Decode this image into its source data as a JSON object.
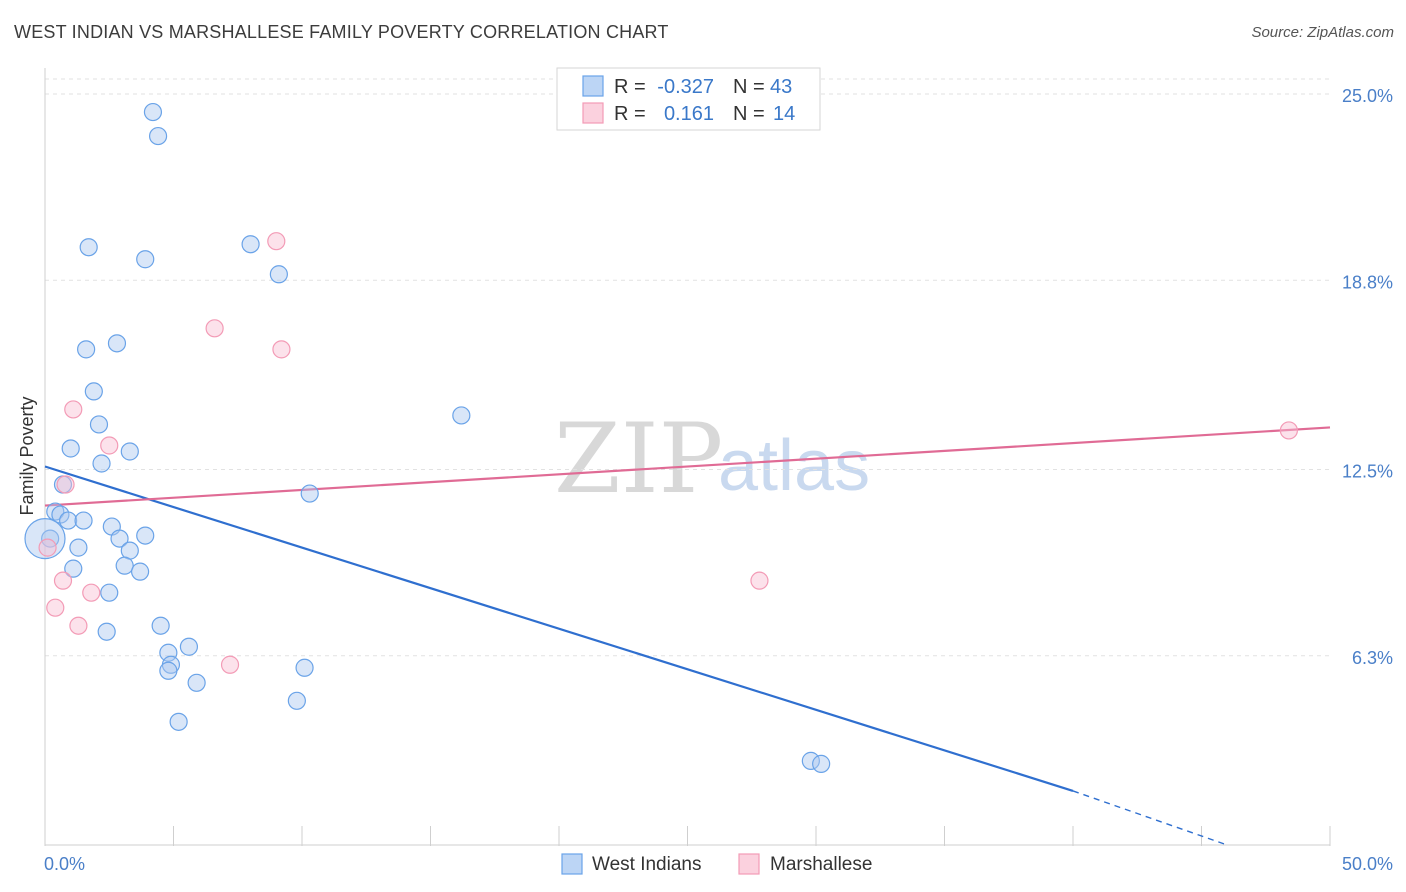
{
  "header": {
    "title": "WEST INDIAN VS MARSHALLESE FAMILY POVERTY CORRELATION CHART",
    "source": "Source: ZipAtlas.com"
  },
  "watermark": {
    "zip": "ZIP",
    "atlas": "atlas"
  },
  "colors": {
    "west_indians": "#6aa3e8",
    "west_indians_line": "#2f6fcf",
    "marshallese": "#f39bb6",
    "marshallese_line": "#e06b95",
    "tick_label": "#4a7fc8"
  },
  "legend": {
    "rows": [
      {
        "r_label": "R =",
        "r_value": "-0.327",
        "n_label": "N =",
        "n_value": "43"
      },
      {
        "r_label": "R =",
        "r_value": "0.161",
        "n_label": "N =",
        "n_value": "14"
      }
    ]
  },
  "chart_data": {
    "type": "scatter",
    "title": "WEST INDIAN VS MARSHALLESE FAMILY POVERTY CORRELATION CHART",
    "xlabel": "",
    "ylabel": "Family Poverty",
    "xlim": [
      0,
      50
    ],
    "ylim": [
      0,
      25.5
    ],
    "x_tick_labels": [
      "0.0%",
      "50.0%"
    ],
    "y_ticks": [
      6.3,
      12.5,
      18.8,
      25.0
    ],
    "y_tick_labels": [
      "6.3%",
      "12.5%",
      "18.8%",
      "25.0%"
    ],
    "grid": true,
    "legend_position": "top-center",
    "series": [
      {
        "name": "West Indians",
        "r": -0.327,
        "n": 43,
        "points": [
          [
            4.2,
            24.4
          ],
          [
            4.4,
            23.6
          ],
          [
            1.7,
            19.9
          ],
          [
            3.9,
            19.5
          ],
          [
            8.0,
            20.0
          ],
          [
            9.1,
            19.0
          ],
          [
            1.6,
            16.5
          ],
          [
            2.8,
            16.7
          ],
          [
            1.9,
            15.1
          ],
          [
            2.1,
            14.0
          ],
          [
            16.2,
            14.3
          ],
          [
            1.0,
            13.2
          ],
          [
            3.3,
            13.1
          ],
          [
            2.2,
            12.7
          ],
          [
            0.7,
            12.0
          ],
          [
            10.3,
            11.7
          ],
          [
            0.4,
            11.1
          ],
          [
            0.6,
            11.0
          ],
          [
            0.9,
            10.8
          ],
          [
            1.5,
            10.8
          ],
          [
            2.6,
            10.6
          ],
          [
            3.9,
            10.3
          ],
          [
            2.9,
            10.2
          ],
          [
            0.2,
            10.2
          ],
          [
            1.3,
            9.9
          ],
          [
            3.3,
            9.8
          ],
          [
            1.1,
            9.2
          ],
          [
            3.1,
            9.3
          ],
          [
            3.7,
            9.1
          ],
          [
            2.5,
            8.4
          ],
          [
            4.5,
            7.3
          ],
          [
            2.4,
            7.1
          ],
          [
            5.6,
            6.6
          ],
          [
            4.8,
            6.4
          ],
          [
            4.9,
            6.0
          ],
          [
            4.8,
            5.8
          ],
          [
            10.1,
            5.9
          ],
          [
            5.9,
            5.4
          ],
          [
            9.8,
            4.8
          ],
          [
            5.2,
            4.1
          ],
          [
            29.8,
            2.8
          ],
          [
            30.2,
            2.7
          ],
          [
            0.0,
            10.2
          ]
        ]
      },
      {
        "name": "Marshallese",
        "r": 0.161,
        "n": 14,
        "points": [
          [
            9.0,
            20.1
          ],
          [
            6.6,
            17.2
          ],
          [
            9.2,
            16.5
          ],
          [
            1.1,
            14.5
          ],
          [
            2.5,
            13.3
          ],
          [
            0.8,
            12.0
          ],
          [
            0.1,
            9.9
          ],
          [
            0.7,
            8.8
          ],
          [
            1.8,
            8.4
          ],
          [
            0.4,
            7.9
          ],
          [
            1.3,
            7.3
          ],
          [
            7.2,
            6.0
          ],
          [
            27.8,
            8.8
          ],
          [
            48.4,
            13.8
          ]
        ]
      }
    ],
    "trend_lines": [
      {
        "series": "West Indians",
        "x": [
          0,
          40
        ],
        "y": [
          12.6,
          1.8
        ],
        "dashed_to": [
          46.0,
          0.0
        ]
      },
      {
        "series": "Marshallese",
        "x": [
          0,
          50
        ],
        "y": [
          11.3,
          13.9
        ]
      }
    ]
  },
  "bottom_legend": {
    "items": [
      {
        "label": "West Indians"
      },
      {
        "label": "Marshallese"
      }
    ]
  }
}
